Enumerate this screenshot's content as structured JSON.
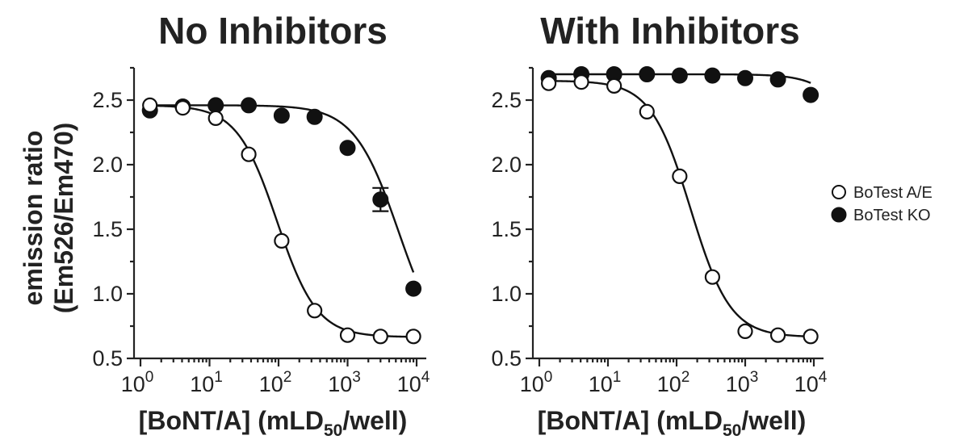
{
  "chart_data": [
    {
      "type": "scatter",
      "title": "No Inhibitors",
      "xlabel_main": "[BoNT/A] (mLD",
      "xlabel_sub": "50",
      "xlabel_end": "/well)",
      "ylabel": "emission ratio",
      "ylabel2": "(Em526/Em470)",
      "xscale": "log",
      "xlim": [
        1,
        10000
      ],
      "ylim": [
        0.5,
        2.75
      ],
      "yticks": [
        "0.5",
        "1.0",
        "1.5",
        "2.0",
        "2.5"
      ],
      "ytick_values": [
        0.5,
        1.0,
        1.5,
        2.0,
        2.5
      ],
      "xtick_base": "10",
      "xtick_exps": [
        "0",
        "1",
        "2",
        "3",
        "4"
      ],
      "series": [
        {
          "name": "BoTest A/E",
          "marker": "open",
          "x": [
            1.37,
            4.1,
            12.3,
            37,
            111,
            333,
            1000,
            3000,
            9000
          ],
          "y": [
            2.46,
            2.44,
            2.36,
            2.08,
            1.41,
            0.87,
            0.68,
            0.67,
            0.67
          ],
          "fit": {
            "top": 2.46,
            "bottom": 0.665,
            "ec50": 95,
            "hill": 1.5
          }
        },
        {
          "name": "BoTest KO",
          "marker": "filled",
          "x": [
            1.37,
            4.1,
            12.3,
            37,
            111,
            333,
            1000,
            3000,
            9000
          ],
          "y": [
            2.42,
            2.45,
            2.46,
            2.46,
            2.38,
            2.37,
            2.13,
            1.73,
            1.04
          ],
          "err": [
            0,
            0,
            0,
            0,
            0,
            0,
            0,
            0.09,
            0
          ],
          "fit": {
            "top": 2.46,
            "bottom": 0.5,
            "ec50": 5500,
            "hill": 1.35
          }
        }
      ]
    },
    {
      "type": "scatter",
      "title": "With Inhibitors",
      "xlabel_main": "[BoNT/A] (mLD",
      "xlabel_sub": "50",
      "xlabel_end": "/well)",
      "xscale": "log",
      "xlim": [
        1,
        10000
      ],
      "ylim": [
        0.5,
        2.75
      ],
      "yticks": [
        "0.5",
        "1.0",
        "1.5",
        "2.0",
        "2.5"
      ],
      "ytick_values": [
        0.5,
        1.0,
        1.5,
        2.0,
        2.5
      ],
      "xtick_base": "10",
      "xtick_exps": [
        "0",
        "1",
        "2",
        "3",
        "4"
      ],
      "series": [
        {
          "name": "BoTest A/E",
          "marker": "open",
          "x": [
            1.37,
            4.1,
            12.3,
            37,
            111,
            333,
            1000,
            3000,
            9000
          ],
          "y": [
            2.63,
            2.64,
            2.61,
            2.41,
            1.91,
            1.13,
            0.71,
            0.68,
            0.67
          ],
          "fit": {
            "top": 2.65,
            "bottom": 0.665,
            "ec50": 160,
            "hill": 1.5
          }
        },
        {
          "name": "BoTest KO",
          "marker": "filled",
          "x": [
            1.37,
            4.1,
            12.3,
            37,
            111,
            333,
            1000,
            3000,
            9000
          ],
          "y": [
            2.67,
            2.7,
            2.7,
            2.7,
            2.69,
            2.69,
            2.67,
            2.66,
            2.54
          ],
          "fit": {
            "top": 2.7,
            "bottom": 0.5,
            "ec50": 90000,
            "hill": 1.5
          }
        }
      ]
    }
  ],
  "legend": {
    "items": [
      {
        "label": "BoTest A/E",
        "marker": "open"
      },
      {
        "label": "BoTest KO",
        "marker": "filled"
      }
    ]
  }
}
